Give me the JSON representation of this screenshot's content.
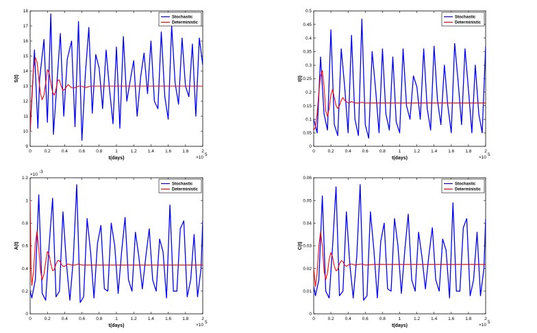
{
  "figure": {
    "panels": 4
  },
  "chart_data": [
    {
      "type": "line",
      "panel": "top-left",
      "xlabel": "t(days)",
      "ylabel": "S(t)",
      "xlim": [
        0,
        2
      ],
      "ylim": [
        9,
        18
      ],
      "x_multiplier": "×10",
      "x_multiplier_exp": "5",
      "y_multiplier": "",
      "y_multiplier_exp": "",
      "xticks": [
        "0",
        "0.2",
        "0.4",
        "0.6",
        "0.8",
        "1",
        "1.2",
        "1.4",
        "1.6",
        "1.8",
        "2"
      ],
      "yticks": [
        "9",
        "10",
        "11",
        "12",
        "13",
        "14",
        "15",
        "16",
        "17",
        "18"
      ],
      "legend_position": "top-right",
      "series": [
        {
          "name": "Stochastic",
          "color": "#0000ff",
          "x": [
            0,
            0.05,
            0.09,
            0.11,
            0.16,
            0.2,
            0.24,
            0.27,
            0.31,
            0.35,
            0.39,
            0.43,
            0.48,
            0.52,
            0.56,
            0.6,
            0.64,
            0.68,
            0.72,
            0.76,
            0.8,
            0.84,
            0.88,
            0.92,
            0.96,
            1.0,
            1.04,
            1.08,
            1.12,
            1.16,
            1.2,
            1.24,
            1.28,
            1.32,
            1.36,
            1.4,
            1.44,
            1.48,
            1.52,
            1.56,
            1.6,
            1.64,
            1.68,
            1.72,
            1.76,
            1.8,
            1.84,
            1.88,
            1.92,
            1.96,
            2.0
          ],
          "y": [
            10.0,
            15.4,
            10.2,
            13.5,
            16.1,
            10.6,
            17.8,
            9.8,
            13.2,
            16.5,
            11.0,
            14.8,
            16.0,
            10.3,
            17.3,
            9.4,
            13.8,
            16.9,
            11.2,
            15.1,
            14.2,
            11.5,
            15.4,
            12.8,
            10.5,
            15.6,
            10.2,
            16.3,
            12.0,
            13.4,
            14.7,
            11.0,
            13.6,
            15.2,
            12.5,
            16.0,
            12.0,
            11.5,
            16.6,
            12.3,
            10.8,
            17.0,
            13.2,
            11.8,
            16.2,
            13.0,
            12.3,
            15.8,
            11.0,
            16.2,
            14.4
          ]
        },
        {
          "name": "Deterministic",
          "color": "#ff0000",
          "x": [
            0,
            0.02,
            0.04,
            0.06,
            0.08,
            0.1,
            0.12,
            0.14,
            0.16,
            0.18,
            0.2,
            0.22,
            0.24,
            0.26,
            0.28,
            0.3,
            0.32,
            0.34,
            0.36,
            0.38,
            0.4,
            0.44,
            0.48,
            0.52,
            0.56,
            0.6,
            0.64,
            0.7,
            0.8,
            1.0,
            1.2,
            1.4,
            1.6,
            1.8,
            2.0
          ],
          "y": [
            10.0,
            12.4,
            14.2,
            14.9,
            14.6,
            13.5,
            12.5,
            12.1,
            12.4,
            13.2,
            14.1,
            13.9,
            13.2,
            12.6,
            12.4,
            12.8,
            13.4,
            13.4,
            13.0,
            12.7,
            12.8,
            13.1,
            12.9,
            12.9,
            13.0,
            13.0,
            12.9,
            13.0,
            13.0,
            13.0,
            13.0,
            13.0,
            13.0,
            13.0,
            13.0
          ]
        }
      ]
    },
    {
      "type": "line",
      "panel": "top-right",
      "xlabel": "t(days)",
      "ylabel": "I(t)",
      "xlim": [
        0,
        2
      ],
      "ylim": [
        0,
        0.5
      ],
      "x_multiplier": "×10",
      "x_multiplier_exp": "5",
      "y_multiplier": "",
      "y_multiplier_exp": "",
      "xticks": [
        "0",
        "0.2",
        "0.4",
        "0.6",
        "0.8",
        "1",
        "1.2",
        "1.4",
        "1.6",
        "1.8",
        "2"
      ],
      "yticks": [
        "0",
        "0.05",
        "0.1",
        "0.15",
        "0.2",
        "0.25",
        "0.3",
        "0.35",
        "0.4",
        "0.45",
        "0.5"
      ],
      "legend_position": "top-right",
      "series": [
        {
          "name": "Stochastic",
          "color": "#0000ff",
          "x": [
            0,
            0.04,
            0.08,
            0.12,
            0.16,
            0.2,
            0.24,
            0.28,
            0.32,
            0.36,
            0.4,
            0.44,
            0.48,
            0.52,
            0.56,
            0.6,
            0.64,
            0.68,
            0.72,
            0.76,
            0.8,
            0.84,
            0.88,
            0.92,
            0.96,
            1.0,
            1.04,
            1.08,
            1.12,
            1.16,
            1.2,
            1.24,
            1.28,
            1.32,
            1.36,
            1.4,
            1.44,
            1.48,
            1.52,
            1.56,
            1.6,
            1.64,
            1.68,
            1.72,
            1.76,
            1.8,
            1.84,
            1.88,
            1.92,
            1.96,
            2.0
          ],
          "y": [
            0.1,
            0.05,
            0.33,
            0.12,
            0.06,
            0.43,
            0.08,
            0.04,
            0.36,
            0.22,
            0.05,
            0.41,
            0.1,
            0.04,
            0.47,
            0.08,
            0.03,
            0.35,
            0.21,
            0.05,
            0.36,
            0.12,
            0.06,
            0.33,
            0.09,
            0.05,
            0.36,
            0.15,
            0.1,
            0.26,
            0.22,
            0.1,
            0.36,
            0.14,
            0.06,
            0.37,
            0.17,
            0.08,
            0.3,
            0.15,
            0.05,
            0.38,
            0.24,
            0.08,
            0.36,
            0.21,
            0.05,
            0.3,
            0.12,
            0.05,
            0.37
          ]
        },
        {
          "name": "Deterministic",
          "color": "#ff0000",
          "x": [
            0,
            0.02,
            0.04,
            0.06,
            0.08,
            0.1,
            0.12,
            0.14,
            0.16,
            0.18,
            0.2,
            0.22,
            0.24,
            0.26,
            0.28,
            0.3,
            0.32,
            0.34,
            0.36,
            0.4,
            0.44,
            0.48,
            0.52,
            0.56,
            0.6,
            0.7,
            0.8,
            1.0,
            1.2,
            1.4,
            1.6,
            1.8,
            2.0
          ],
          "y": [
            0.06,
            0.07,
            0.12,
            0.2,
            0.26,
            0.28,
            0.22,
            0.13,
            0.11,
            0.14,
            0.19,
            0.21,
            0.18,
            0.15,
            0.14,
            0.15,
            0.17,
            0.18,
            0.17,
            0.16,
            0.165,
            0.16,
            0.16,
            0.162,
            0.16,
            0.16,
            0.16,
            0.16,
            0.16,
            0.16,
            0.16,
            0.16,
            0.16
          ]
        }
      ]
    },
    {
      "type": "line",
      "panel": "bottom-left",
      "xlabel": "t(days)",
      "ylabel": "A(t)",
      "xlim": [
        0,
        2
      ],
      "ylim": [
        0,
        1.2
      ],
      "x_multiplier": "×10",
      "x_multiplier_exp": "5",
      "y_multiplier": "×10",
      "y_multiplier_exp": "-3",
      "xticks": [
        "0",
        "0.2",
        "0.4",
        "0.6",
        "0.8",
        "1",
        "1.2",
        "1.4",
        "1.6",
        "1.8",
        "2"
      ],
      "yticks": [
        "0",
        "0.2",
        "0.4",
        "0.6",
        "0.8",
        "1",
        "1.2"
      ],
      "legend_position": "top-right",
      "series": [
        {
          "name": "Stochastic",
          "color": "#0000ff",
          "x": [
            0,
            0.02,
            0.06,
            0.1,
            0.14,
            0.18,
            0.22,
            0.26,
            0.3,
            0.34,
            0.38,
            0.42,
            0.46,
            0.5,
            0.54,
            0.58,
            0.62,
            0.66,
            0.7,
            0.74,
            0.78,
            0.82,
            0.86,
            0.9,
            0.94,
            0.98,
            1.02,
            1.06,
            1.1,
            1.14,
            1.18,
            1.22,
            1.26,
            1.3,
            1.34,
            1.38,
            1.42,
            1.46,
            1.5,
            1.54,
            1.58,
            1.62,
            1.66,
            1.7,
            1.74,
            1.78,
            1.82,
            1.86,
            1.9,
            1.94,
            1.98,
            2.0
          ],
          "y": [
            0.2,
            0.14,
            0.3,
            1.05,
            0.18,
            0.12,
            0.6,
            1.02,
            0.15,
            0.2,
            0.9,
            0.45,
            0.12,
            0.48,
            1.14,
            0.1,
            0.15,
            0.84,
            0.55,
            0.14,
            0.62,
            0.78,
            0.22,
            0.2,
            0.8,
            0.6,
            0.18,
            0.55,
            0.85,
            0.3,
            0.2,
            0.72,
            0.5,
            0.22,
            0.5,
            0.75,
            0.3,
            0.2,
            0.66,
            0.55,
            0.14,
            0.96,
            0.2,
            0.2,
            0.75,
            0.82,
            0.15,
            0.3,
            0.7,
            0.15,
            0.4,
            0.82
          ]
        },
        {
          "name": "Deterministic",
          "color": "#ff0000",
          "x": [
            0,
            0.01,
            0.02,
            0.04,
            0.06,
            0.08,
            0.1,
            0.12,
            0.14,
            0.16,
            0.18,
            0.2,
            0.22,
            0.24,
            0.26,
            0.28,
            0.3,
            0.32,
            0.34,
            0.36,
            0.38,
            0.4,
            0.44,
            0.48,
            0.52,
            0.56,
            0.6,
            0.7,
            0.8,
            1.0,
            1.2,
            1.4,
            1.6,
            1.8,
            2.0
          ],
          "y": [
            1.0,
            0.4,
            0.25,
            0.38,
            0.62,
            0.73,
            0.58,
            0.38,
            0.3,
            0.35,
            0.46,
            0.55,
            0.52,
            0.44,
            0.38,
            0.39,
            0.44,
            0.47,
            0.47,
            0.44,
            0.42,
            0.42,
            0.44,
            0.43,
            0.43,
            0.44,
            0.43,
            0.43,
            0.43,
            0.43,
            0.43,
            0.43,
            0.43,
            0.43,
            0.43
          ]
        }
      ]
    },
    {
      "type": "line",
      "panel": "bottom-right",
      "xlabel": "t(days)",
      "ylabel": "C(t)",
      "xlim": [
        0,
        2
      ],
      "ylim": [
        0,
        0.06
      ],
      "x_multiplier": "×10",
      "x_multiplier_exp": "5",
      "y_multiplier": "",
      "y_multiplier_exp": "",
      "xticks": [
        "0",
        "0.2",
        "0.4",
        "0.6",
        "0.8",
        "1",
        "1.2",
        "1.4",
        "1.6",
        "1.8",
        "2"
      ],
      "yticks": [
        "0",
        "0.01",
        "0.02",
        "0.03",
        "0.04",
        "0.05",
        "0.06"
      ],
      "legend_position": "top-right",
      "series": [
        {
          "name": "Stochastic",
          "color": "#0000ff",
          "x": [
            0,
            0.02,
            0.06,
            0.1,
            0.14,
            0.18,
            0.22,
            0.26,
            0.3,
            0.34,
            0.38,
            0.42,
            0.46,
            0.5,
            0.54,
            0.58,
            0.62,
            0.66,
            0.7,
            0.74,
            0.78,
            0.82,
            0.86,
            0.9,
            0.94,
            0.98,
            1.02,
            1.06,
            1.1,
            1.14,
            1.18,
            1.22,
            1.26,
            1.3,
            1.34,
            1.38,
            1.42,
            1.46,
            1.5,
            1.54,
            1.58,
            1.62,
            1.66,
            1.7,
            1.74,
            1.78,
            1.82,
            1.86,
            1.9,
            1.94,
            1.98,
            2.0
          ],
          "y": [
            0.012,
            0.008,
            0.015,
            0.052,
            0.01,
            0.007,
            0.03,
            0.056,
            0.008,
            0.01,
            0.045,
            0.022,
            0.007,
            0.025,
            0.057,
            0.006,
            0.008,
            0.045,
            0.028,
            0.007,
            0.032,
            0.04,
            0.011,
            0.01,
            0.042,
            0.03,
            0.009,
            0.028,
            0.044,
            0.015,
            0.01,
            0.036,
            0.025,
            0.011,
            0.026,
            0.038,
            0.015,
            0.01,
            0.033,
            0.028,
            0.007,
            0.049,
            0.01,
            0.01,
            0.038,
            0.042,
            0.008,
            0.015,
            0.036,
            0.008,
            0.02,
            0.042
          ]
        },
        {
          "name": "Deterministic",
          "color": "#ff0000",
          "x": [
            0,
            0.02,
            0.04,
            0.06,
            0.08,
            0.1,
            0.12,
            0.14,
            0.16,
            0.18,
            0.2,
            0.22,
            0.24,
            0.26,
            0.28,
            0.3,
            0.32,
            0.34,
            0.36,
            0.38,
            0.4,
            0.44,
            0.48,
            0.52,
            0.56,
            0.6,
            0.7,
            0.8,
            1.0,
            1.2,
            1.4,
            1.6,
            1.8,
            2.0
          ],
          "y": [
            0.02,
            0.012,
            0.018,
            0.03,
            0.036,
            0.03,
            0.019,
            0.015,
            0.018,
            0.024,
            0.027,
            0.025,
            0.021,
            0.019,
            0.0195,
            0.022,
            0.0235,
            0.023,
            0.0215,
            0.021,
            0.0215,
            0.022,
            0.0215,
            0.0218,
            0.022,
            0.0215,
            0.0218,
            0.0218,
            0.0218,
            0.0218,
            0.0218,
            0.0218,
            0.0218,
            0.0218
          ]
        }
      ]
    }
  ]
}
